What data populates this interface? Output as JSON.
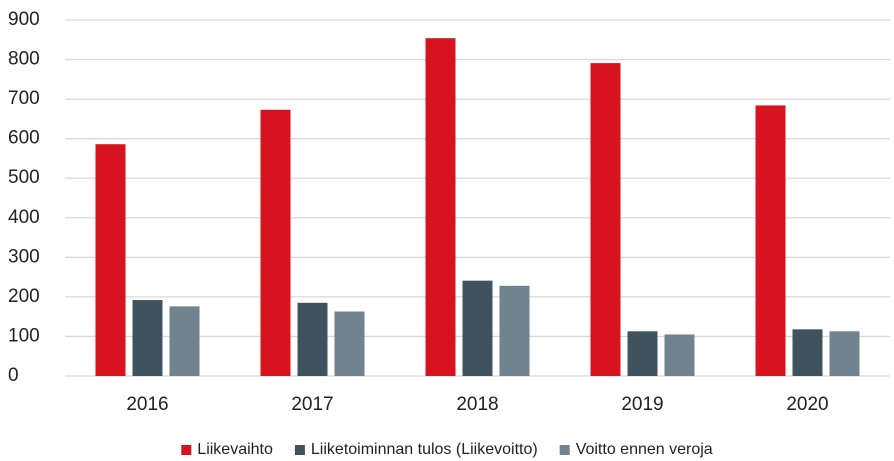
{
  "chart_data": {
    "type": "bar",
    "categories": [
      "2016",
      "2017",
      "2018",
      "2019",
      "2020"
    ],
    "series": [
      {
        "name": "Liikevaihto",
        "color": "#d7131f",
        "values": [
          586,
          673,
          854,
          791,
          684
        ]
      },
      {
        "name": "Liiketoiminnan tulos (Liikevoitto)",
        "color": "#3f535e",
        "values": [
          192,
          185,
          241,
          113,
          118
        ]
      },
      {
        "name": "Voitto ennen veroja",
        "color": "#71838e",
        "values": [
          176,
          163,
          228,
          105,
          113
        ]
      }
    ],
    "ylim": [
      0,
      900
    ],
    "yticks": [
      0,
      100,
      200,
      300,
      400,
      500,
      600,
      700,
      800,
      900
    ],
    "grid": true,
    "legend": "bottom"
  }
}
